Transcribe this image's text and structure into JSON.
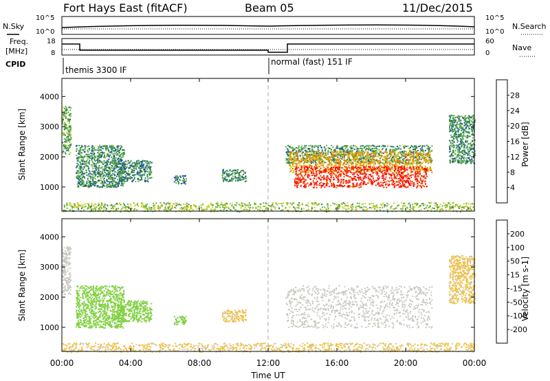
{
  "header": {
    "station": "Fort Hays East (fitACF)",
    "beam": "Beam 05",
    "date": "11/Dec/2015"
  },
  "nsky_panel": {
    "left_label": "N.Sky",
    "right_label": "N.Search",
    "left_ticks": [
      "10^5",
      "10^0"
    ],
    "right_ticks": [
      "10^5",
      "10^0"
    ]
  },
  "freq_panel": {
    "left_label_1": "Freq.",
    "left_label_2": "[MHz]",
    "right_label": "Nave",
    "left_ticks": [
      "18",
      "8"
    ],
    "right_ticks": [
      "60",
      "0"
    ]
  },
  "cpid_panel": {
    "label": "CPID",
    "modes": [
      "themis 3300 IF",
      "normal (fast) 151 IF"
    ]
  },
  "colors": {
    "power": [
      "#0000ff",
      "#1c4fa0",
      "#2a7a5c",
      "#64b040",
      "#c8d020",
      "#f0a800",
      "#f07000",
      "#f03000",
      "#ff0000"
    ],
    "velocity": [
      "#ff0000",
      "#ff5000",
      "#ff9a00",
      "#f0c040",
      "#c8c8c0",
      "#80d040",
      "#30a040",
      "#2050a0",
      "#0000c0"
    ]
  },
  "chart_data": [
    {
      "type": "heatmap",
      "panel": "power",
      "ylabel": "Slant Range [km]",
      "yticks": [
        "4000",
        "3000",
        "2000",
        "1000"
      ],
      "ylim": [
        200,
        4600
      ],
      "colorbar": {
        "label": "Power [dB]",
        "ticks": [
          "28",
          "24",
          "20",
          "16",
          "12",
          "8",
          "4"
        ],
        "range": [
          0,
          32
        ]
      },
      "x_ticks": [
        "00:00",
        "04:00",
        "08:00",
        "12:00",
        "16:00",
        "20:00",
        "00:00"
      ],
      "xlim_hours": [
        0,
        24
      ],
      "echo_regions": [
        {
          "t0": 0.0,
          "t1": 0.5,
          "r0": 2100,
          "r1": 3700,
          "value": 12
        },
        {
          "t0": 0.8,
          "t1": 3.6,
          "r0": 1000,
          "r1": 2400,
          "value": 10
        },
        {
          "t0": 3.2,
          "t1": 5.2,
          "r0": 1200,
          "r1": 1900,
          "value": 9
        },
        {
          "t0": 6.5,
          "t1": 7.2,
          "r0": 1100,
          "r1": 1400,
          "value": 8
        },
        {
          "t0": 9.3,
          "t1": 10.7,
          "r0": 1200,
          "r1": 1600,
          "value": 10
        },
        {
          "t0": 0.0,
          "t1": 24.0,
          "r0": 200,
          "r1": 500,
          "value": 14
        },
        {
          "t0": 13.0,
          "t1": 21.5,
          "r0": 1800,
          "r1": 2400,
          "value": 10
        },
        {
          "t0": 13.2,
          "t1": 21.5,
          "r0": 1500,
          "r1": 2200,
          "value": 20
        },
        {
          "t0": 13.5,
          "t1": 21.2,
          "r0": 1000,
          "r1": 1700,
          "value": 28
        },
        {
          "t0": 22.5,
          "t1": 24.0,
          "r0": 1800,
          "r1": 3400,
          "value": 10
        }
      ]
    },
    {
      "type": "heatmap",
      "panel": "velocity",
      "ylabel": "Slant Range [km]",
      "yticks": [
        "4000",
        "3000",
        "2000",
        "1000"
      ],
      "ylim": [
        200,
        4600
      ],
      "xlabel": "Time UT",
      "colorbar": {
        "label": "Velocity [m s-1]",
        "ticks": [
          "200",
          "100",
          "50",
          "15",
          "-15",
          "-50",
          "-100",
          "-200"
        ],
        "range": [
          -250,
          250
        ]
      },
      "x_ticks": [
        "00:00",
        "04:00",
        "08:00",
        "12:00",
        "16:00",
        "20:00",
        "00:00"
      ],
      "xlim_hours": [
        0,
        24
      ],
      "echo_regions": [
        {
          "t0": 0.0,
          "t1": 0.5,
          "r0": 2100,
          "r1": 3700,
          "value": 0
        },
        {
          "t0": 0.8,
          "t1": 3.6,
          "r0": 1000,
          "r1": 2400,
          "value": 60
        },
        {
          "t0": 3.2,
          "t1": 5.2,
          "r0": 1200,
          "r1": 1900,
          "value": 50
        },
        {
          "t0": 6.5,
          "t1": 7.2,
          "r0": 1100,
          "r1": 1400,
          "value": 40
        },
        {
          "t0": 9.3,
          "t1": 10.7,
          "r0": 1200,
          "r1": 1600,
          "value": -40
        },
        {
          "t0": 0.0,
          "t1": 24.0,
          "r0": 200,
          "r1": 500,
          "value": -40
        },
        {
          "t0": 13.0,
          "t1": 21.5,
          "r0": 1000,
          "r1": 2400,
          "value": 0
        },
        {
          "t0": 22.5,
          "t1": 24.0,
          "r0": 1800,
          "r1": 3400,
          "value": -40
        }
      ]
    }
  ]
}
